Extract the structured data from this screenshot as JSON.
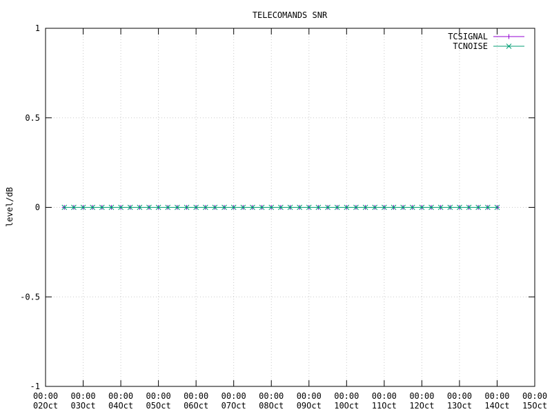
{
  "chart_data": {
    "type": "line",
    "title": "TELECOMANDS SNR",
    "y_label": "level/dB",
    "x": [
      "12:00 02Oct",
      "18:00 02Oct",
      "00:00 03Oct",
      "06:00 03Oct",
      "12:00 03Oct",
      "18:00 03Oct",
      "00:00 04Oct",
      "06:00 04Oct",
      "12:00 04Oct",
      "18:00 04Oct",
      "00:00 05Oct",
      "06:00 05Oct",
      "12:00 05Oct",
      "18:00 05Oct",
      "00:00 06Oct",
      "06:00 06Oct",
      "12:00 06Oct",
      "18:00 06Oct",
      "00:00 07Oct",
      "06:00 07Oct",
      "12:00 07Oct",
      "18:00 07Oct",
      "00:00 08Oct",
      "06:00 08Oct",
      "12:00 08Oct",
      "18:00 08Oct",
      "00:00 09Oct",
      "06:00 09Oct",
      "12:00 09Oct",
      "18:00 09Oct",
      "00:00 10Oct",
      "06:00 10Oct",
      "12:00 10Oct",
      "18:00 10Oct",
      "00:00 11Oct",
      "06:00 11Oct",
      "12:00 11Oct",
      "18:00 11Oct",
      "00:00 12Oct",
      "06:00 12Oct",
      "12:00 12Oct",
      "18:00 12Oct",
      "00:00 13Oct",
      "06:00 13Oct",
      "12:00 13Oct",
      "18:00 13Oct",
      "00:00 14Oct"
    ],
    "series": [
      {
        "name": "TCSIGNAL",
        "color": "#9400d3",
        "marker": "plus",
        "values": [
          0,
          0,
          0,
          0,
          0,
          0,
          0,
          0,
          0,
          0,
          0,
          0,
          0,
          0,
          0,
          0,
          0,
          0,
          0,
          0,
          0,
          0,
          0,
          0,
          0,
          0,
          0,
          0,
          0,
          0,
          0,
          0,
          0,
          0,
          0,
          0,
          0,
          0,
          0,
          0,
          0,
          0,
          0,
          0,
          0,
          0,
          0
        ]
      },
      {
        "name": "TCNOISE",
        "color": "#009e73",
        "marker": "cross",
        "values": [
          0,
          0,
          0,
          0,
          0,
          0,
          0,
          0,
          0,
          0,
          0,
          0,
          0,
          0,
          0,
          0,
          0,
          0,
          0,
          0,
          0,
          0,
          0,
          0,
          0,
          0,
          0,
          0,
          0,
          0,
          0,
          0,
          0,
          0,
          0,
          0,
          0,
          0,
          0,
          0,
          0,
          0,
          0,
          0,
          0,
          0,
          0
        ]
      }
    ],
    "xlim": [
      "00:00 02Oct",
      "00:00 15Oct"
    ],
    "xticks": [
      "00:00 02Oct",
      "00:00 03Oct",
      "00:00 04Oct",
      "00:00 05Oct",
      "00:00 06Oct",
      "00:00 07Oct",
      "00:00 08Oct",
      "00:00 09Oct",
      "00:00 10Oct",
      "00:00 11Oct",
      "00:00 12Oct",
      "00:00 13Oct",
      "00:00 14Oct",
      "00:00 15Oct"
    ],
    "ylim": [
      -1,
      1
    ],
    "yticks": [
      -1,
      -0.5,
      0,
      0.5,
      1
    ],
    "grid": true,
    "legend": "top-right"
  }
}
